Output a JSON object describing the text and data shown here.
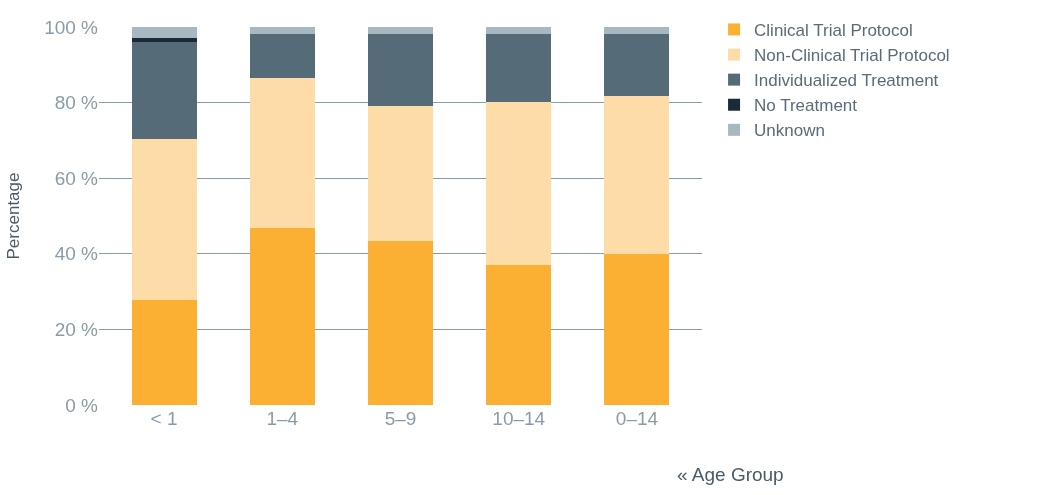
{
  "chart_data": {
    "type": "bar",
    "stacked": true,
    "xlabel": "« Age Group",
    "ylabel": "Percentage",
    "categories": [
      "< 1",
      "1–4",
      "5–9",
      "10–14",
      "0–14"
    ],
    "series": [
      {
        "name": "Clinical Trial Protocol",
        "color": "#fbb034",
        "values": [
          27.7,
          46.8,
          43.5,
          37.1,
          39.9
        ]
      },
      {
        "name": "Non-Clinical Trial Protocol",
        "color": "#fddca8",
        "values": [
          42.6,
          39.6,
          35.5,
          43.1,
          41.9
        ]
      },
      {
        "name": "Individualized Treatment",
        "color": "#566b78",
        "values": [
          25.7,
          11.8,
          19.2,
          18.0,
          16.4
        ]
      },
      {
        "name": "No Treatment",
        "color": "#1a2a36",
        "values": [
          1.0,
          0,
          0,
          0,
          0
        ]
      },
      {
        "name": "Unknown",
        "color": "#a8b8c0",
        "values": [
          3.0,
          1.8,
          1.8,
          1.8,
          1.8
        ]
      }
    ],
    "ylim": [
      0,
      100
    ],
    "yticks": [
      {
        "value": 0,
        "label": "0 %"
      },
      {
        "value": 20,
        "label": "20 %"
      },
      {
        "value": 40,
        "label": "40 %"
      },
      {
        "value": 60,
        "label": "60 %"
      },
      {
        "value": 80,
        "label": "80 %"
      },
      {
        "value": 100,
        "label": "100 %"
      }
    ],
    "grid": "y",
    "legend": "top right"
  }
}
